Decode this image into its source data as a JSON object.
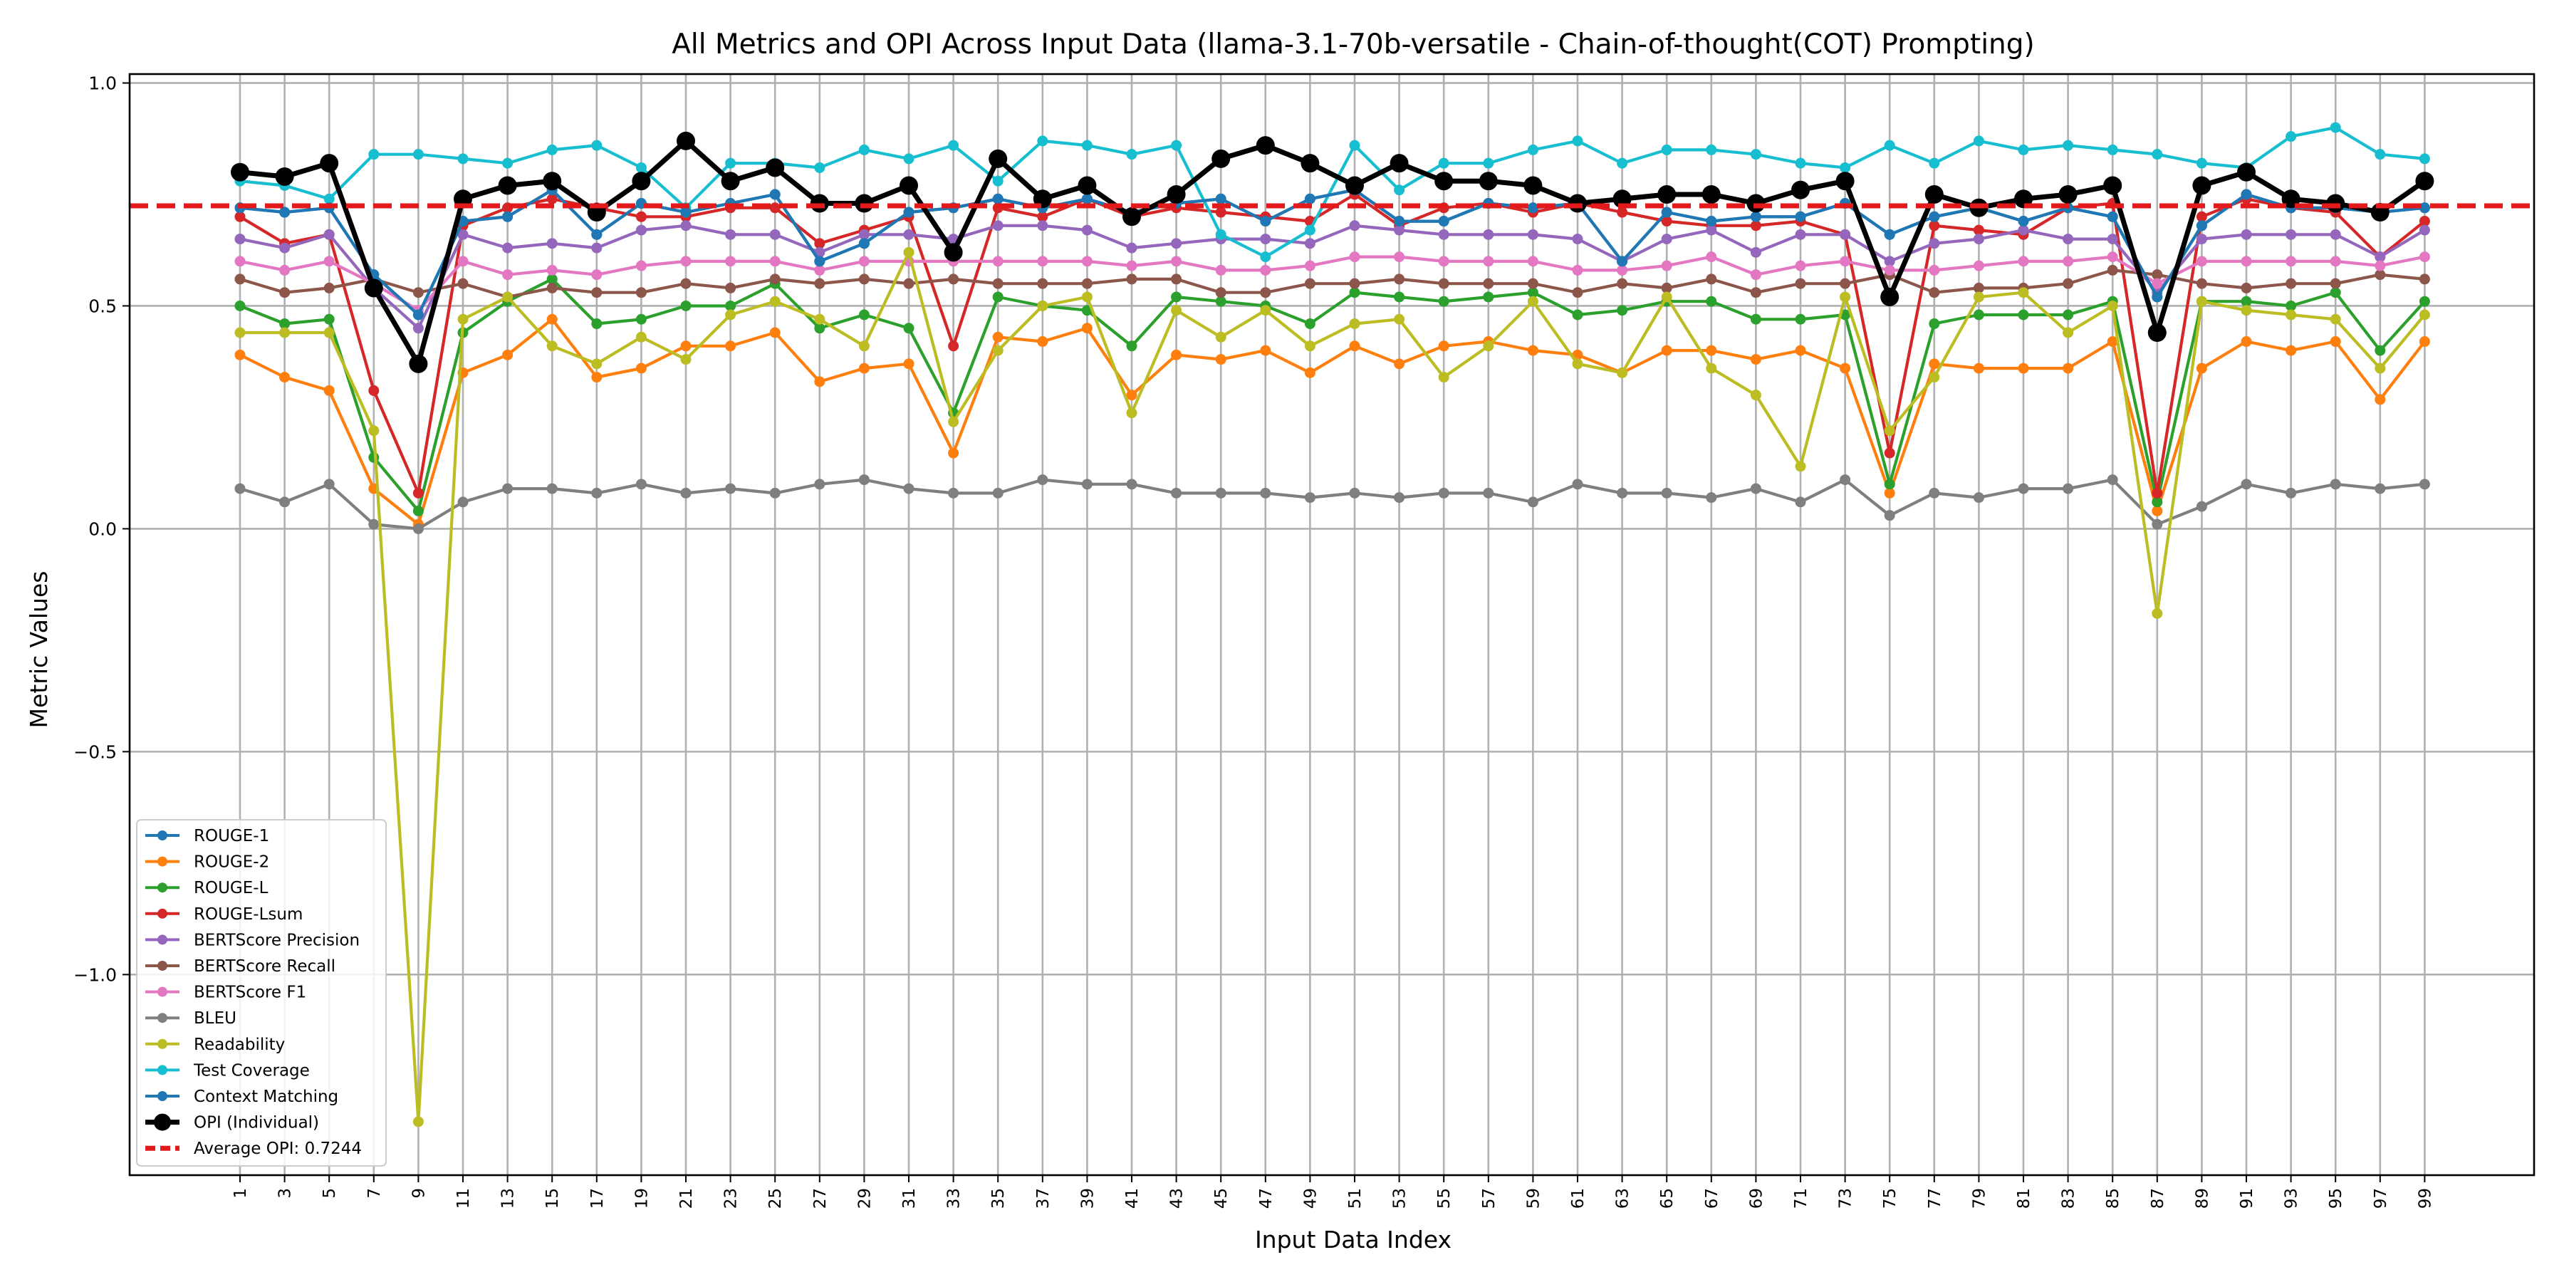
{
  "chart_data": {
    "type": "line",
    "title": "All Metrics and OPI Across Input Data (llama-3.1-70b-versatile - Chain-of-thought(COT) Prompting)",
    "xlabel": "Input Data Index",
    "ylabel": "Metric Values",
    "ylim": [
      -1.45,
      1.02
    ],
    "yticks": [
      1.0,
      0.5,
      0.0,
      -0.5,
      -1.0
    ],
    "ytick_labels": [
      "1.0",
      "0.5",
      "0.0",
      "−0.5",
      "−1.0"
    ],
    "x": [
      1,
      3,
      5,
      7,
      9,
      11,
      13,
      15,
      17,
      19,
      21,
      23,
      25,
      27,
      29,
      31,
      33,
      35,
      37,
      39,
      41,
      43,
      45,
      47,
      49,
      51,
      53,
      55,
      57,
      59,
      61,
      63,
      65,
      67,
      69,
      71,
      73,
      75,
      77,
      79,
      81,
      83,
      85,
      87,
      89,
      91,
      93,
      95,
      97,
      99
    ],
    "x_tick_labels": [
      "1",
      "3",
      "5",
      "7",
      "9",
      "11",
      "13",
      "15",
      "17",
      "19",
      "21",
      "23",
      "25",
      "27",
      "29",
      "31",
      "33",
      "35",
      "37",
      "39",
      "41",
      "43",
      "45",
      "47",
      "49",
      "51",
      "53",
      "55",
      "57",
      "59",
      "61",
      "63",
      "65",
      "67",
      "69",
      "71",
      "73",
      "75",
      "77",
      "79",
      "81",
      "83",
      "85",
      "87",
      "89",
      "91",
      "93",
      "95",
      "97",
      "99"
    ],
    "grid": true,
    "legend_position": "lower-left",
    "average_opi": {
      "value": 0.7244,
      "label": "Average OPI: 0.7244",
      "color": "#e31a1c"
    },
    "series": [
      {
        "name": "ROUGE-1",
        "color": "#1f77b4",
        "values": [
          0.72,
          0.71,
          0.72,
          0.57,
          0.48,
          0.69,
          0.7,
          0.76,
          0.66,
          0.73,
          0.71,
          0.73,
          0.75,
          0.6,
          0.64,
          0.71,
          0.72,
          0.74,
          0.72,
          0.74,
          0.71,
          0.73,
          0.74,
          0.69,
          0.74,
          0.76,
          0.69,
          0.69,
          0.73,
          0.72,
          0.73,
          0.6,
          0.71,
          0.69,
          0.7,
          0.7,
          0.73,
          0.66,
          0.7,
          0.72,
          0.69,
          0.72,
          0.7,
          0.52,
          0.68,
          0.75,
          0.72,
          0.72,
          0.71,
          0.72
        ]
      },
      {
        "name": "ROUGE-2",
        "color": "#ff7f0e",
        "values": [
          0.39,
          0.34,
          0.31,
          0.09,
          0.01,
          0.35,
          0.39,
          0.47,
          0.34,
          0.36,
          0.41,
          0.41,
          0.44,
          0.33,
          0.36,
          0.37,
          0.17,
          0.43,
          0.42,
          0.45,
          0.3,
          0.39,
          0.38,
          0.4,
          0.35,
          0.41,
          0.37,
          0.41,
          0.42,
          0.4,
          0.39,
          0.35,
          0.4,
          0.4,
          0.38,
          0.4,
          0.36,
          0.08,
          0.37,
          0.36,
          0.36,
          0.36,
          0.42,
          0.04,
          0.36,
          0.42,
          0.4,
          0.42,
          0.29,
          0.42
        ]
      },
      {
        "name": "ROUGE-L",
        "color": "#2ca02c",
        "values": [
          0.5,
          0.46,
          0.47,
          0.16,
          0.04,
          0.44,
          0.51,
          0.56,
          0.46,
          0.47,
          0.5,
          0.5,
          0.55,
          0.45,
          0.48,
          0.45,
          0.26,
          0.52,
          0.5,
          0.49,
          0.41,
          0.52,
          0.51,
          0.5,
          0.46,
          0.53,
          0.52,
          0.51,
          0.52,
          0.53,
          0.48,
          0.49,
          0.51,
          0.51,
          0.47,
          0.47,
          0.48,
          0.1,
          0.46,
          0.48,
          0.48,
          0.48,
          0.51,
          0.06,
          0.51,
          0.51,
          0.5,
          0.53,
          0.4,
          0.51
        ]
      },
      {
        "name": "ROUGE-Lsum",
        "color": "#d62728",
        "values": [
          0.7,
          0.64,
          0.66,
          0.31,
          0.08,
          0.68,
          0.72,
          0.74,
          0.72,
          0.7,
          0.7,
          0.72,
          0.72,
          0.64,
          0.67,
          0.7,
          0.41,
          0.72,
          0.7,
          0.74,
          0.7,
          0.72,
          0.71,
          0.7,
          0.69,
          0.75,
          0.68,
          0.72,
          0.73,
          0.71,
          0.73,
          0.71,
          0.69,
          0.68,
          0.68,
          0.69,
          0.66,
          0.17,
          0.68,
          0.67,
          0.66,
          0.72,
          0.73,
          0.08,
          0.7,
          0.74,
          0.72,
          0.71,
          0.61,
          0.69
        ]
      },
      {
        "name": "BERTScore Precision",
        "color": "#9467bd",
        "values": [
          0.65,
          0.63,
          0.66,
          0.54,
          0.45,
          0.66,
          0.63,
          0.64,
          0.63,
          0.67,
          0.68,
          0.66,
          0.66,
          0.62,
          0.66,
          0.66,
          0.65,
          0.68,
          0.68,
          0.67,
          0.63,
          0.64,
          0.65,
          0.65,
          0.64,
          0.68,
          0.67,
          0.66,
          0.66,
          0.66,
          0.65,
          0.6,
          0.65,
          0.67,
          0.62,
          0.66,
          0.66,
          0.6,
          0.64,
          0.65,
          0.67,
          0.65,
          0.65,
          0.53,
          0.65,
          0.66,
          0.66,
          0.66,
          0.61,
          0.67
        ]
      },
      {
        "name": "BERTScore Recall",
        "color": "#8c564b",
        "values": [
          0.56,
          0.53,
          0.54,
          0.56,
          0.53,
          0.55,
          0.52,
          0.54,
          0.53,
          0.53,
          0.55,
          0.54,
          0.56,
          0.55,
          0.56,
          0.55,
          0.56,
          0.55,
          0.55,
          0.55,
          0.56,
          0.56,
          0.53,
          0.53,
          0.55,
          0.55,
          0.56,
          0.55,
          0.55,
          0.55,
          0.53,
          0.55,
          0.54,
          0.56,
          0.53,
          0.55,
          0.55,
          0.57,
          0.53,
          0.54,
          0.54,
          0.55,
          0.58,
          0.57,
          0.55,
          0.54,
          0.55,
          0.55,
          0.57,
          0.56
        ]
      },
      {
        "name": "BERTScore F1",
        "color": "#e377c2",
        "values": [
          0.6,
          0.58,
          0.6,
          0.55,
          0.49,
          0.6,
          0.57,
          0.58,
          0.57,
          0.59,
          0.6,
          0.6,
          0.6,
          0.58,
          0.6,
          0.6,
          0.6,
          0.6,
          0.6,
          0.6,
          0.59,
          0.6,
          0.58,
          0.58,
          0.59,
          0.61,
          0.61,
          0.6,
          0.6,
          0.6,
          0.58,
          0.58,
          0.59,
          0.61,
          0.57,
          0.59,
          0.6,
          0.58,
          0.58,
          0.59,
          0.6,
          0.6,
          0.61,
          0.55,
          0.6,
          0.6,
          0.6,
          0.6,
          0.59,
          0.61
        ]
      },
      {
        "name": "BLEU",
        "color": "#7f7f7f",
        "values": [
          0.09,
          0.06,
          0.1,
          0.01,
          0.0,
          0.06,
          0.09,
          0.09,
          0.08,
          0.1,
          0.08,
          0.09,
          0.08,
          0.1,
          0.11,
          0.09,
          0.08,
          0.08,
          0.11,
          0.1,
          0.1,
          0.08,
          0.08,
          0.08,
          0.07,
          0.08,
          0.07,
          0.08,
          0.08,
          0.06,
          0.1,
          0.08,
          0.08,
          0.07,
          0.09,
          0.06,
          0.11,
          0.03,
          0.08,
          0.07,
          0.09,
          0.09,
          0.11,
          0.01,
          0.05,
          0.1,
          0.08,
          0.1,
          0.09,
          0.1
        ]
      },
      {
        "name": "Readability",
        "color": "#bcbd22",
        "values": [
          0.44,
          0.44,
          0.44,
          0.22,
          -1.33,
          0.47,
          0.52,
          0.41,
          0.37,
          0.43,
          0.38,
          0.48,
          0.51,
          0.47,
          0.41,
          0.62,
          0.24,
          0.4,
          0.5,
          0.52,
          0.26,
          0.49,
          0.43,
          0.49,
          0.41,
          0.46,
          0.47,
          0.34,
          0.41,
          0.51,
          0.37,
          0.35,
          0.52,
          0.36,
          0.3,
          0.14,
          0.52,
          0.22,
          0.34,
          0.52,
          0.53,
          0.44,
          0.5,
          -0.19,
          0.51,
          0.49,
          0.48,
          0.47,
          0.36,
          0.48
        ]
      },
      {
        "name": "Test Coverage",
        "color": "#17becf",
        "values": [
          0.78,
          0.77,
          0.74,
          0.84,
          0.84,
          0.83,
          0.82,
          0.85,
          0.86,
          0.81,
          0.72,
          0.82,
          0.82,
          0.81,
          0.85,
          0.83,
          0.86,
          0.78,
          0.87,
          0.86,
          0.84,
          0.86,
          0.66,
          0.61,
          0.67,
          0.86,
          0.76,
          0.82,
          0.82,
          0.85,
          0.87,
          0.82,
          0.85,
          0.85,
          0.84,
          0.82,
          0.81,
          0.86,
          0.82,
          0.87,
          0.85,
          0.86,
          0.85,
          0.84,
          0.82,
          0.81,
          0.88,
          0.9,
          0.84,
          0.83
        ]
      },
      {
        "name": "Context Matching",
        "color": "#1f77b4",
        "values": [
          0.72,
          0.71,
          0.72,
          0.57,
          0.48,
          0.69,
          0.7,
          0.76,
          0.66,
          0.73,
          0.71,
          0.73,
          0.75,
          0.6,
          0.64,
          0.71,
          0.72,
          0.74,
          0.72,
          0.74,
          0.71,
          0.73,
          0.74,
          0.69,
          0.74,
          0.76,
          0.69,
          0.69,
          0.73,
          0.72,
          0.73,
          0.6,
          0.71,
          0.69,
          0.7,
          0.7,
          0.73,
          0.66,
          0.7,
          0.72,
          0.69,
          0.72,
          0.7,
          0.52,
          0.68,
          0.75,
          0.72,
          0.72,
          0.71,
          0.72
        ]
      },
      {
        "name": "OPI (Individual)",
        "color": "#000000",
        "values": [
          0.8,
          0.79,
          0.82,
          0.54,
          0.37,
          0.74,
          0.77,
          0.78,
          0.71,
          0.78,
          0.87,
          0.78,
          0.81,
          0.73,
          0.73,
          0.77,
          0.62,
          0.83,
          0.74,
          0.77,
          0.7,
          0.75,
          0.83,
          0.86,
          0.82,
          0.77,
          0.82,
          0.78,
          0.78,
          0.77,
          0.73,
          0.74,
          0.75,
          0.75,
          0.73,
          0.76,
          0.78,
          0.52,
          0.75,
          0.72,
          0.74,
          0.75,
          0.77,
          0.44,
          0.77,
          0.8,
          0.74,
          0.73,
          0.71,
          0.78
        ]
      }
    ]
  }
}
